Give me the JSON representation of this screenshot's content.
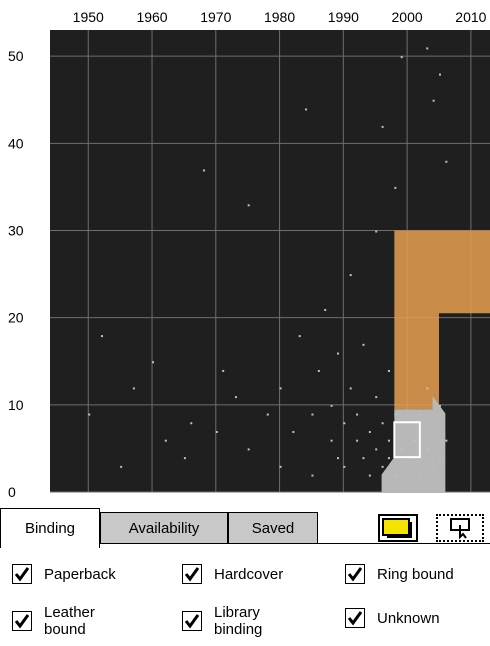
{
  "chart_data": {
    "type": "scatter",
    "x_ticks": [
      1950,
      1960,
      1970,
      1980,
      1990,
      2000,
      2010
    ],
    "y_ticks": [
      0,
      10,
      20,
      30,
      40,
      50
    ],
    "xlim": [
      1944,
      2013
    ],
    "ylim": [
      0,
      53
    ],
    "grid": true,
    "background": "#1f1f1f",
    "point_color": "#c0c0c0",
    "highlight_color": "#e8a050",
    "highlight_region": [
      [
        1998,
        30
      ],
      [
        2013,
        30
      ],
      [
        2013,
        20.5
      ],
      [
        2005,
        20.5
      ],
      [
        2005,
        9.5
      ],
      [
        1998,
        9.5
      ]
    ],
    "selection_box": {
      "x": [
        1998,
        2002
      ],
      "y": [
        4,
        8
      ]
    },
    "density_note": "sparse points across 1950–2000 at low values; dense cluster 1988–2006 concentrated below 10",
    "points": [
      [
        1952,
        18
      ],
      [
        1957,
        12
      ],
      [
        1950,
        9
      ],
      [
        1965,
        4
      ],
      [
        1966,
        8
      ],
      [
        1960,
        15
      ],
      [
        1962,
        6
      ],
      [
        1955,
        3
      ],
      [
        1970,
        7
      ],
      [
        1971,
        14
      ],
      [
        1973,
        11
      ],
      [
        1975,
        5
      ],
      [
        1978,
        9
      ],
      [
        1980,
        12
      ],
      [
        1980,
        3
      ],
      [
        1982,
        7
      ],
      [
        1983,
        18
      ],
      [
        1985,
        9
      ],
      [
        1985,
        2
      ],
      [
        1986,
        14
      ],
      [
        1987,
        21
      ],
      [
        1988,
        6
      ],
      [
        1988,
        10
      ],
      [
        1989,
        4
      ],
      [
        1989,
        16
      ],
      [
        1990,
        8
      ],
      [
        1990,
        3
      ],
      [
        1991,
        12
      ],
      [
        1991,
        25
      ],
      [
        1992,
        6
      ],
      [
        1992,
        9
      ],
      [
        1993,
        4
      ],
      [
        1993,
        17
      ],
      [
        1994,
        7
      ],
      [
        1994,
        2
      ],
      [
        1995,
        11
      ],
      [
        1995,
        5
      ],
      [
        1995,
        30
      ],
      [
        1996,
        8
      ],
      [
        1996,
        3
      ],
      [
        1996,
        42
      ],
      [
        1997,
        6
      ],
      [
        1997,
        14
      ],
      [
        1997,
        4
      ],
      [
        1998,
        9
      ],
      [
        1998,
        2
      ],
      [
        1998,
        35
      ],
      [
        1999,
        5
      ],
      [
        1999,
        7
      ],
      [
        2000,
        3
      ],
      [
        2000,
        8
      ],
      [
        2001,
        6
      ],
      [
        2001,
        4
      ],
      [
        2002,
        9
      ],
      [
        2002,
        2
      ],
      [
        2003,
        5
      ],
      [
        2003,
        12
      ],
      [
        2004,
        7
      ],
      [
        2004,
        3
      ],
      [
        2005,
        10
      ],
      [
        2005,
        4
      ],
      [
        2005,
        48
      ],
      [
        2006,
        6
      ],
      [
        2006,
        38
      ],
      [
        2004,
        45
      ],
      [
        2003,
        51
      ],
      [
        1999,
        50
      ],
      [
        1968,
        37
      ],
      [
        1975,
        33
      ],
      [
        1984,
        44
      ]
    ]
  },
  "tabs": [
    {
      "label": "Binding",
      "active": true
    },
    {
      "label": "Availability",
      "active": false
    },
    {
      "label": "Saved",
      "active": false
    }
  ],
  "tools": {
    "box_icon": "rectangle-select-icon",
    "select_icon": "pointer-select-icon"
  },
  "binding_filters": [
    {
      "label": "Paperback",
      "checked": true
    },
    {
      "label": "Hardcover",
      "checked": true
    },
    {
      "label": "Ring bound",
      "checked": true
    },
    {
      "label": "Leather bound",
      "checked": true
    },
    {
      "label": "Library binding",
      "checked": true
    },
    {
      "label": "Unknown",
      "checked": true
    }
  ]
}
